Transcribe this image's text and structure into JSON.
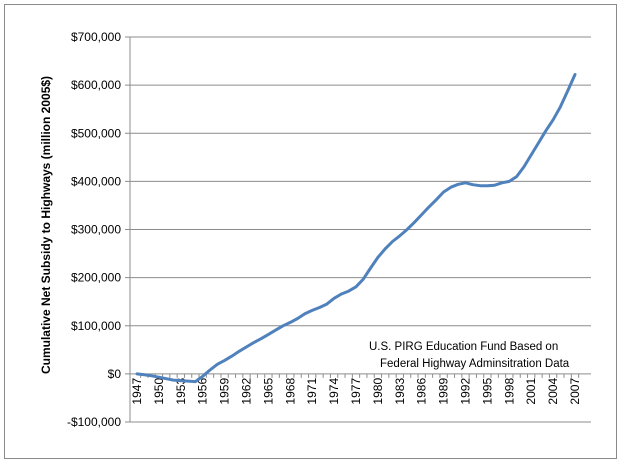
{
  "chart_data": {
    "type": "line",
    "title": "",
    "xlabel": "",
    "ylabel": "Cumulative Net Subsidy to Highways (million 2005$)",
    "ylim": [
      -100000,
      700000
    ],
    "yticks": [
      -100000,
      0,
      100000,
      200000,
      300000,
      400000,
      500000,
      600000,
      700000
    ],
    "ytick_labels": [
      "-$100,000",
      "$0",
      "$100,000",
      "$200,000",
      "$300,000",
      "$400,000",
      "$500,000",
      "$600,000",
      "$700,000"
    ],
    "xlim": [
      1947,
      2007
    ],
    "xticks": [
      1947,
      1950,
      1953,
      1956,
      1959,
      1962,
      1965,
      1968,
      1971,
      1974,
      1977,
      1980,
      1983,
      1986,
      1989,
      1992,
      1995,
      1998,
      2001,
      2004,
      2007
    ],
    "grid": "horizontal",
    "legend": "none",
    "annotation": [
      "U.S. PIRG Education Fund Based on",
      "Federal Highway Adminsitration Data"
    ],
    "series": [
      {
        "name": "Cumulative Net Subsidy",
        "color": "#4f81bd",
        "x": [
          1947,
          1948,
          1949,
          1950,
          1951,
          1952,
          1953,
          1954,
          1955,
          1956,
          1957,
          1958,
          1959,
          1960,
          1961,
          1962,
          1963,
          1964,
          1965,
          1966,
          1967,
          1968,
          1969,
          1970,
          1971,
          1972,
          1973,
          1974,
          1975,
          1976,
          1977,
          1978,
          1979,
          1980,
          1981,
          1982,
          1983,
          1984,
          1985,
          1986,
          1987,
          1988,
          1989,
          1990,
          1991,
          1992,
          1993,
          1994,
          1995,
          1996,
          1997,
          1998,
          1999,
          2000,
          2001,
          2002,
          2003,
          2004,
          2005,
          2006,
          2007
        ],
        "y": [
          0,
          -2000,
          -4000,
          -7000,
          -10000,
          -13000,
          -14000,
          -15000,
          -16000,
          -5000,
          8000,
          20000,
          28000,
          37000,
          47000,
          56000,
          65000,
          73000,
          82000,
          91000,
          100000,
          107000,
          115000,
          125000,
          132000,
          138000,
          145000,
          157000,
          166000,
          172000,
          181000,
          197000,
          220000,
          242000,
          260000,
          275000,
          287000,
          300000,
          315000,
          331000,
          347000,
          362000,
          378000,
          388000,
          394000,
          397000,
          393000,
          391000,
          391000,
          392000,
          397000,
          400000,
          410000,
          430000,
          455000,
          480000,
          505000,
          528000,
          555000,
          588000,
          622000
        ]
      }
    ]
  }
}
